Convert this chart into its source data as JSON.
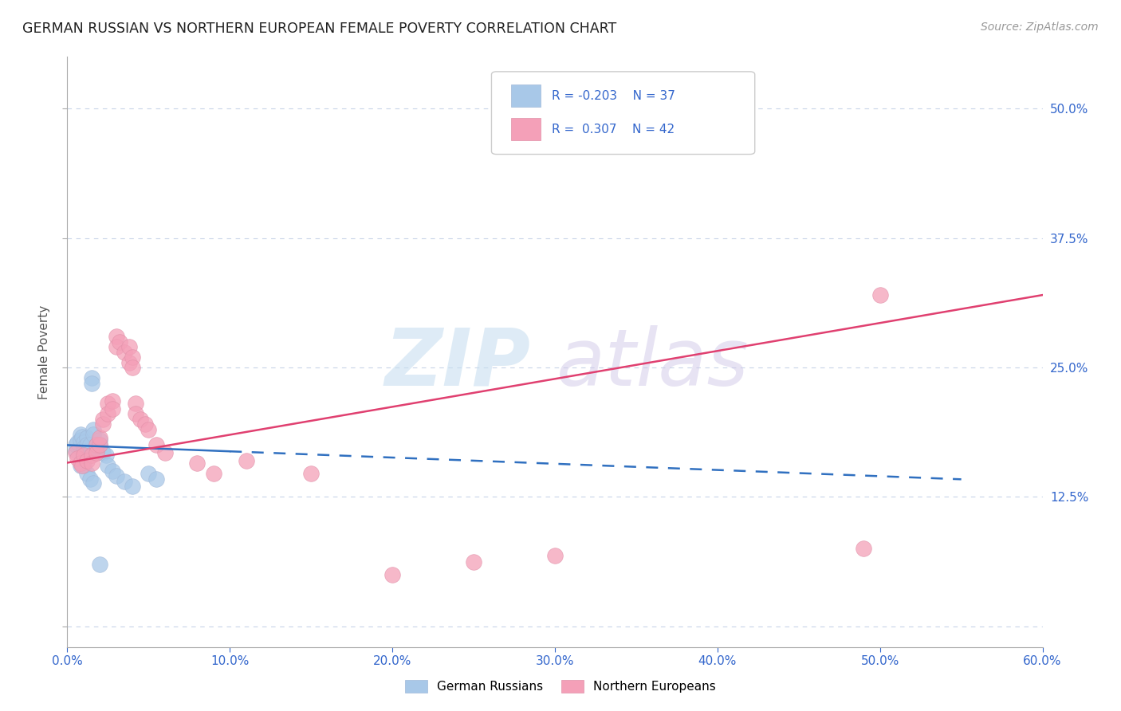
{
  "title": "GERMAN RUSSIAN VS NORTHERN EUROPEAN FEMALE POVERTY CORRELATION CHART",
  "source": "Source: ZipAtlas.com",
  "ylabel": "Female Poverty",
  "xlim": [
    0.0,
    0.6
  ],
  "ylim": [
    -0.02,
    0.55
  ],
  "xtick_vals": [
    0.0,
    0.1,
    0.2,
    0.3,
    0.4,
    0.5,
    0.6
  ],
  "ytick_vals": [
    0.0,
    0.125,
    0.25,
    0.375,
    0.5
  ],
  "right_ytick_vals": [
    0.125,
    0.25,
    0.375,
    0.5
  ],
  "right_ytick_labels": [
    "12.5%",
    "25.0%",
    "37.5%",
    "50.0%"
  ],
  "blue_color": "#a8c8e8",
  "pink_color": "#f4a0b8",
  "blue_line_color": "#3070c0",
  "pink_line_color": "#e04070",
  "text_color": "#3366cc",
  "background_color": "#ffffff",
  "grid_color": "#c8d4e8",
  "german_russians_points": [
    [
      0.005,
      0.17
    ],
    [
      0.005,
      0.175
    ],
    [
      0.006,
      0.178
    ],
    [
      0.008,
      0.185
    ],
    [
      0.008,
      0.18
    ],
    [
      0.009,
      0.183
    ],
    [
      0.01,
      0.178
    ],
    [
      0.01,
      0.172
    ],
    [
      0.01,
      0.168
    ],
    [
      0.012,
      0.182
    ],
    [
      0.012,
      0.175
    ],
    [
      0.013,
      0.17
    ],
    [
      0.014,
      0.175
    ],
    [
      0.014,
      0.168
    ],
    [
      0.015,
      0.24
    ],
    [
      0.015,
      0.235
    ],
    [
      0.016,
      0.19
    ],
    [
      0.016,
      0.185
    ],
    [
      0.018,
      0.175
    ],
    [
      0.018,
      0.17
    ],
    [
      0.02,
      0.18
    ],
    [
      0.02,
      0.175
    ],
    [
      0.022,
      0.168
    ],
    [
      0.024,
      0.165
    ],
    [
      0.025,
      0.155
    ],
    [
      0.028,
      0.15
    ],
    [
      0.03,
      0.145
    ],
    [
      0.035,
      0.14
    ],
    [
      0.04,
      0.135
    ],
    [
      0.05,
      0.148
    ],
    [
      0.055,
      0.142
    ],
    [
      0.008,
      0.155
    ],
    [
      0.01,
      0.155
    ],
    [
      0.012,
      0.148
    ],
    [
      0.014,
      0.142
    ],
    [
      0.016,
      0.138
    ],
    [
      0.02,
      0.06
    ]
  ],
  "northern_europeans_points": [
    [
      0.005,
      0.168
    ],
    [
      0.006,
      0.162
    ],
    [
      0.008,
      0.158
    ],
    [
      0.009,
      0.155
    ],
    [
      0.01,
      0.165
    ],
    [
      0.012,
      0.16
    ],
    [
      0.015,
      0.165
    ],
    [
      0.015,
      0.158
    ],
    [
      0.018,
      0.175
    ],
    [
      0.018,
      0.168
    ],
    [
      0.02,
      0.175
    ],
    [
      0.02,
      0.182
    ],
    [
      0.022,
      0.2
    ],
    [
      0.022,
      0.195
    ],
    [
      0.025,
      0.215
    ],
    [
      0.025,
      0.205
    ],
    [
      0.028,
      0.218
    ],
    [
      0.028,
      0.21
    ],
    [
      0.03,
      0.28
    ],
    [
      0.03,
      0.27
    ],
    [
      0.032,
      0.275
    ],
    [
      0.035,
      0.265
    ],
    [
      0.038,
      0.27
    ],
    [
      0.038,
      0.255
    ],
    [
      0.04,
      0.26
    ],
    [
      0.04,
      0.25
    ],
    [
      0.042,
      0.215
    ],
    [
      0.042,
      0.205
    ],
    [
      0.045,
      0.2
    ],
    [
      0.048,
      0.195
    ],
    [
      0.05,
      0.19
    ],
    [
      0.055,
      0.175
    ],
    [
      0.06,
      0.168
    ],
    [
      0.08,
      0.158
    ],
    [
      0.09,
      0.148
    ],
    [
      0.11,
      0.16
    ],
    [
      0.15,
      0.148
    ],
    [
      0.2,
      0.05
    ],
    [
      0.25,
      0.062
    ],
    [
      0.3,
      0.068
    ],
    [
      0.49,
      0.075
    ],
    [
      0.5,
      0.32
    ]
  ],
  "blue_line_x": [
    0.0,
    0.55
  ],
  "blue_line_y_start": 0.175,
  "blue_line_y_end": 0.142,
  "pink_line_x": [
    0.0,
    0.6
  ],
  "pink_line_y_start": 0.158,
  "pink_line_y_end": 0.32
}
